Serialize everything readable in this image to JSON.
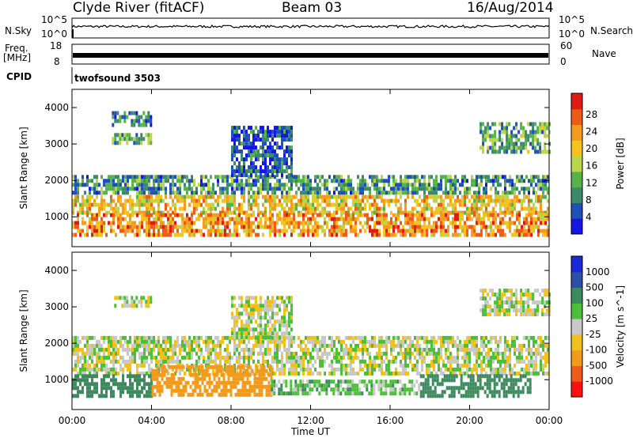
{
  "header": {
    "title": "Clyde River (fitACF)",
    "beam": "Beam 03",
    "date": "16/Aug/2014"
  },
  "side_labels": {
    "nsky": "N.Sky",
    "nsearch": "N.Search",
    "freq": "Freq.",
    "freq_unit": "[MHz]",
    "nave": "Nave",
    "cpid": "CPID",
    "cpid_value": "twofsound 3503"
  },
  "noise_panel": {
    "left_ticks": [
      "10^5",
      "10^0"
    ],
    "right_ticks": [
      "10^5",
      "10^0"
    ]
  },
  "freq_panel": {
    "left_ticks": [
      "18",
      "8"
    ],
    "right_ticks": [
      "60",
      "0"
    ]
  },
  "colors": {
    "power": [
      "#1515e6",
      "#1f4fb8",
      "#3b8a6b",
      "#55b34a",
      "#b9d54a",
      "#f7c21c",
      "#f49a1c",
      "#ef5a16",
      "#e01a10"
    ],
    "velocity": [
      "#ff1010",
      "#f05a1a",
      "#f39a1a",
      "#f2c01a",
      "#c8c8c8",
      "#4cbf3a",
      "#3c8a5e",
      "#2c4fa8",
      "#1a28d8"
    ]
  },
  "chart_data": [
    {
      "type": "heatmap",
      "name": "power",
      "ylabel": "Slant Range [km]",
      "xlabel": "",
      "x_ticks": [
        "00:00",
        "04:00",
        "08:00",
        "12:00",
        "16:00",
        "20:00",
        "00:00"
      ],
      "x_range_hours": [
        0,
        24
      ],
      "ylim": [
        180,
        4500
      ],
      "y_ticks": [
        1000,
        2000,
        3000,
        4000
      ],
      "colorbar": {
        "label": "Power [dB]",
        "range": [
          0,
          33
        ],
        "ticks": [
          4,
          8,
          12,
          16,
          20,
          24,
          28
        ]
      },
      "bands": [
        {
          "t": [
            0,
            24
          ],
          "r": [
            1150,
            1600
          ],
          "level": 20
        },
        {
          "t": [
            0,
            24
          ],
          "r": [
            550,
            1100
          ],
          "level": 24
        },
        {
          "t": [
            0,
            24
          ],
          "r": [
            1650,
            2150
          ],
          "level": 10
        },
        {
          "t": [
            2,
            4
          ],
          "r": [
            3000,
            3300
          ],
          "level": 12
        },
        {
          "t": [
            2,
            4
          ],
          "r": [
            3500,
            3900
          ],
          "level": 8
        },
        {
          "t": [
            8,
            11
          ],
          "r": [
            2100,
            3500
          ],
          "level": 6
        },
        {
          "t": [
            20.5,
            24
          ],
          "r": [
            2800,
            3600
          ],
          "level": 12
        }
      ]
    },
    {
      "type": "heatmap",
      "name": "velocity",
      "ylabel": "Slant Range [km]",
      "xlabel": "Time UT",
      "x_ticks": [
        "00:00",
        "04:00",
        "08:00",
        "12:00",
        "16:00",
        "20:00",
        "00:00"
      ],
      "x_range_hours": [
        0,
        24
      ],
      "ylim": [
        180,
        4500
      ],
      "y_ticks": [
        1000,
        2000,
        3000,
        4000
      ],
      "colorbar": {
        "label": "Velocity [m s^-1]",
        "tick_labels": [
          "-1000",
          "-500",
          "-100",
          "-25",
          "25",
          "100",
          "500",
          "1000"
        ]
      },
      "bands": [
        {
          "t": [
            0,
            24
          ],
          "r": [
            1150,
            2200
          ],
          "value": 0
        },
        {
          "t": [
            0,
            4
          ],
          "r": [
            600,
            1150
          ],
          "value": 300
        },
        {
          "t": [
            17.5,
            23
          ],
          "r": [
            600,
            1150
          ],
          "value": 300
        },
        {
          "t": [
            4,
            10
          ],
          "r": [
            600,
            1400
          ],
          "value": -200
        },
        {
          "t": [
            10,
            17.5
          ],
          "r": [
            600,
            1000
          ],
          "value": 60
        },
        {
          "t": [
            8,
            11
          ],
          "r": [
            2200,
            3300
          ],
          "value": 0
        },
        {
          "t": [
            2,
            4
          ],
          "r": [
            3000,
            3300
          ],
          "value": 0
        },
        {
          "t": [
            20.5,
            24
          ],
          "r": [
            2800,
            3500
          ],
          "value": 0
        }
      ]
    }
  ]
}
